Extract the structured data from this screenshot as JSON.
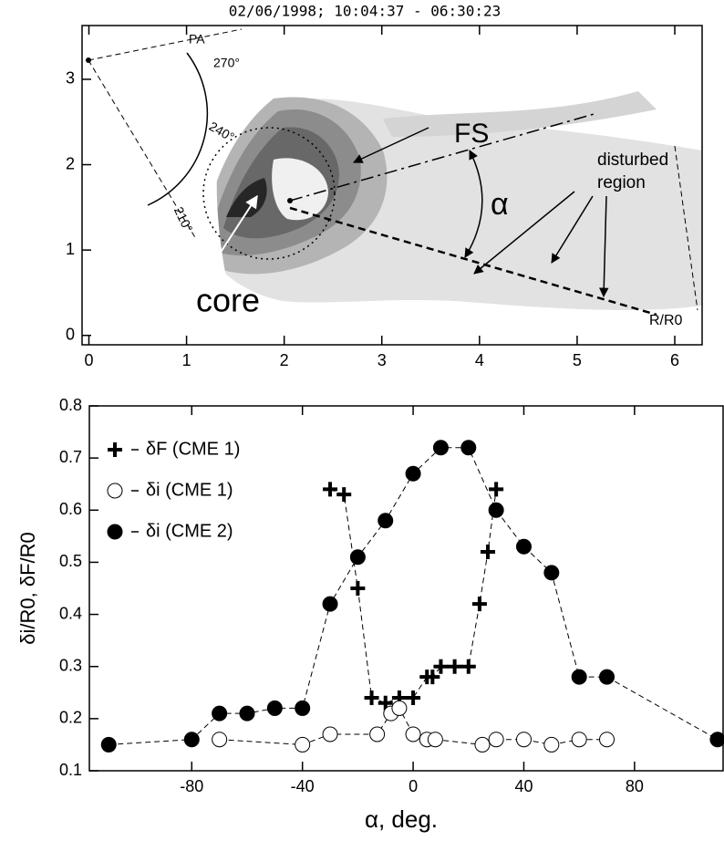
{
  "chart_data": [
    {
      "type": "contour",
      "title": "02/06/1998;  10:04:37 - 06:30:23",
      "xlim": [
        -0.07,
        6.28
      ],
      "ylim": [
        -0.11,
        3.63
      ],
      "xticks": [
        0,
        1,
        2,
        3,
        4,
        5,
        6
      ],
      "yticks": [
        0,
        1,
        2,
        3
      ],
      "annotations": [
        "PA",
        "270°",
        "240°",
        "210°",
        "FS",
        "disturbed",
        "region",
        "α",
        "core",
        "R/R0"
      ]
    },
    {
      "type": "line",
      "xlabel": "α, deg.",
      "ylabel": "δi/R0, δF/R0",
      "xlim": [
        -117,
        112
      ],
      "ylim": [
        0.1,
        0.8
      ],
      "xticks": [
        -80,
        -40,
        0,
        40,
        80
      ],
      "yticks": [
        0.1,
        0.2,
        0.3,
        0.4,
        0.5,
        0.6,
        0.7,
        0.8
      ],
      "legend": "upper left",
      "series": [
        {
          "name": "δF (CME 1)",
          "color": "#000000",
          "marker": "plus",
          "x": [
            -30,
            -25,
            -20,
            -15,
            -10,
            -5,
            0,
            5,
            7,
            10,
            15,
            20,
            24,
            27,
            30
          ],
          "values": [
            0.64,
            0.63,
            0.45,
            0.24,
            0.23,
            0.24,
            0.24,
            0.28,
            0.28,
            0.3,
            0.3,
            0.3,
            0.42,
            0.52,
            0.64
          ]
        },
        {
          "name": "δi (CME 1)",
          "color": "#000000",
          "marker": "open-circle",
          "x": [
            -70,
            -40,
            -30,
            -13,
            -8,
            -5,
            0,
            5,
            8,
            25,
            30,
            40,
            50,
            60,
            70
          ],
          "values": [
            0.16,
            0.15,
            0.17,
            0.17,
            0.21,
            0.22,
            0.17,
            0.16,
            0.16,
            0.15,
            0.16,
            0.16,
            0.15,
            0.16,
            0.16
          ]
        },
        {
          "name": "δi (CME 2)",
          "color": "#000000",
          "marker": "filled-circle",
          "x": [
            -110,
            -80,
            -70,
            -60,
            -50,
            -40,
            -30,
            -20,
            -10,
            0,
            10,
            20,
            30,
            40,
            50,
            60,
            70,
            110
          ],
          "values": [
            0.15,
            0.16,
            0.21,
            0.21,
            0.22,
            0.22,
            0.42,
            0.51,
            0.58,
            0.67,
            0.72,
            0.72,
            0.6,
            0.53,
            0.48,
            0.28,
            0.28,
            0.16
          ]
        }
      ]
    }
  ]
}
